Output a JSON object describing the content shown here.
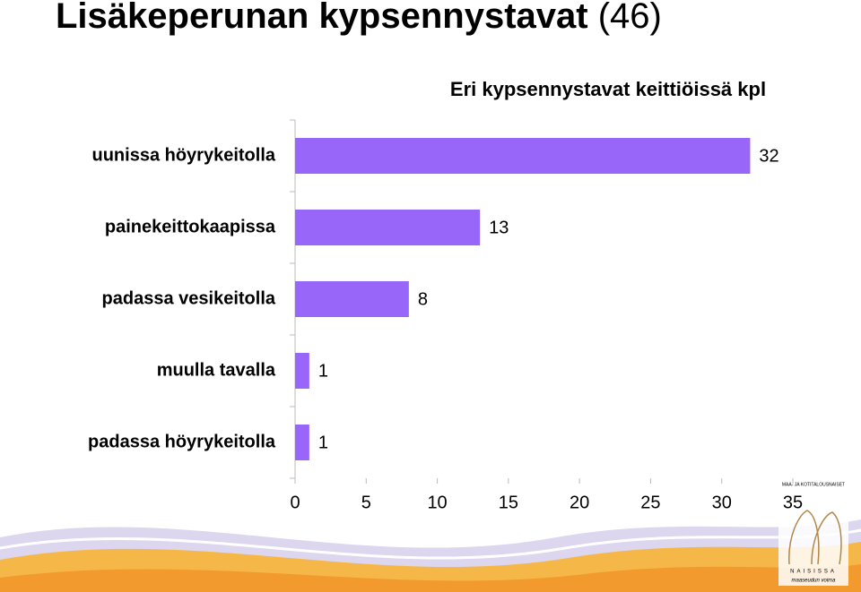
{
  "slide": {
    "title": "Lisäkeperunan kypsennystavat",
    "title_note": "(46)"
  },
  "logo": {
    "org": "MAA- JA KOTITALOUSNAISET",
    "name": "NAISISSA",
    "motto": "maaseudun voima"
  },
  "chart_data": {
    "type": "barh",
    "title": "Eri kypsennystavat keittiöissä kpl",
    "categories": [
      "uunissa höyrykeitolla",
      "painekeittokaapissa",
      "padassa vesikeitolla",
      "muulla tavalla",
      "padassa höyrykeitolla"
    ],
    "values": [
      32,
      13,
      8,
      1,
      1
    ],
    "color": "#9966fa",
    "xlim": [
      0,
      35
    ],
    "xticks": [
      0,
      5,
      10,
      15,
      20,
      25,
      30,
      35
    ],
    "grid": false
  }
}
